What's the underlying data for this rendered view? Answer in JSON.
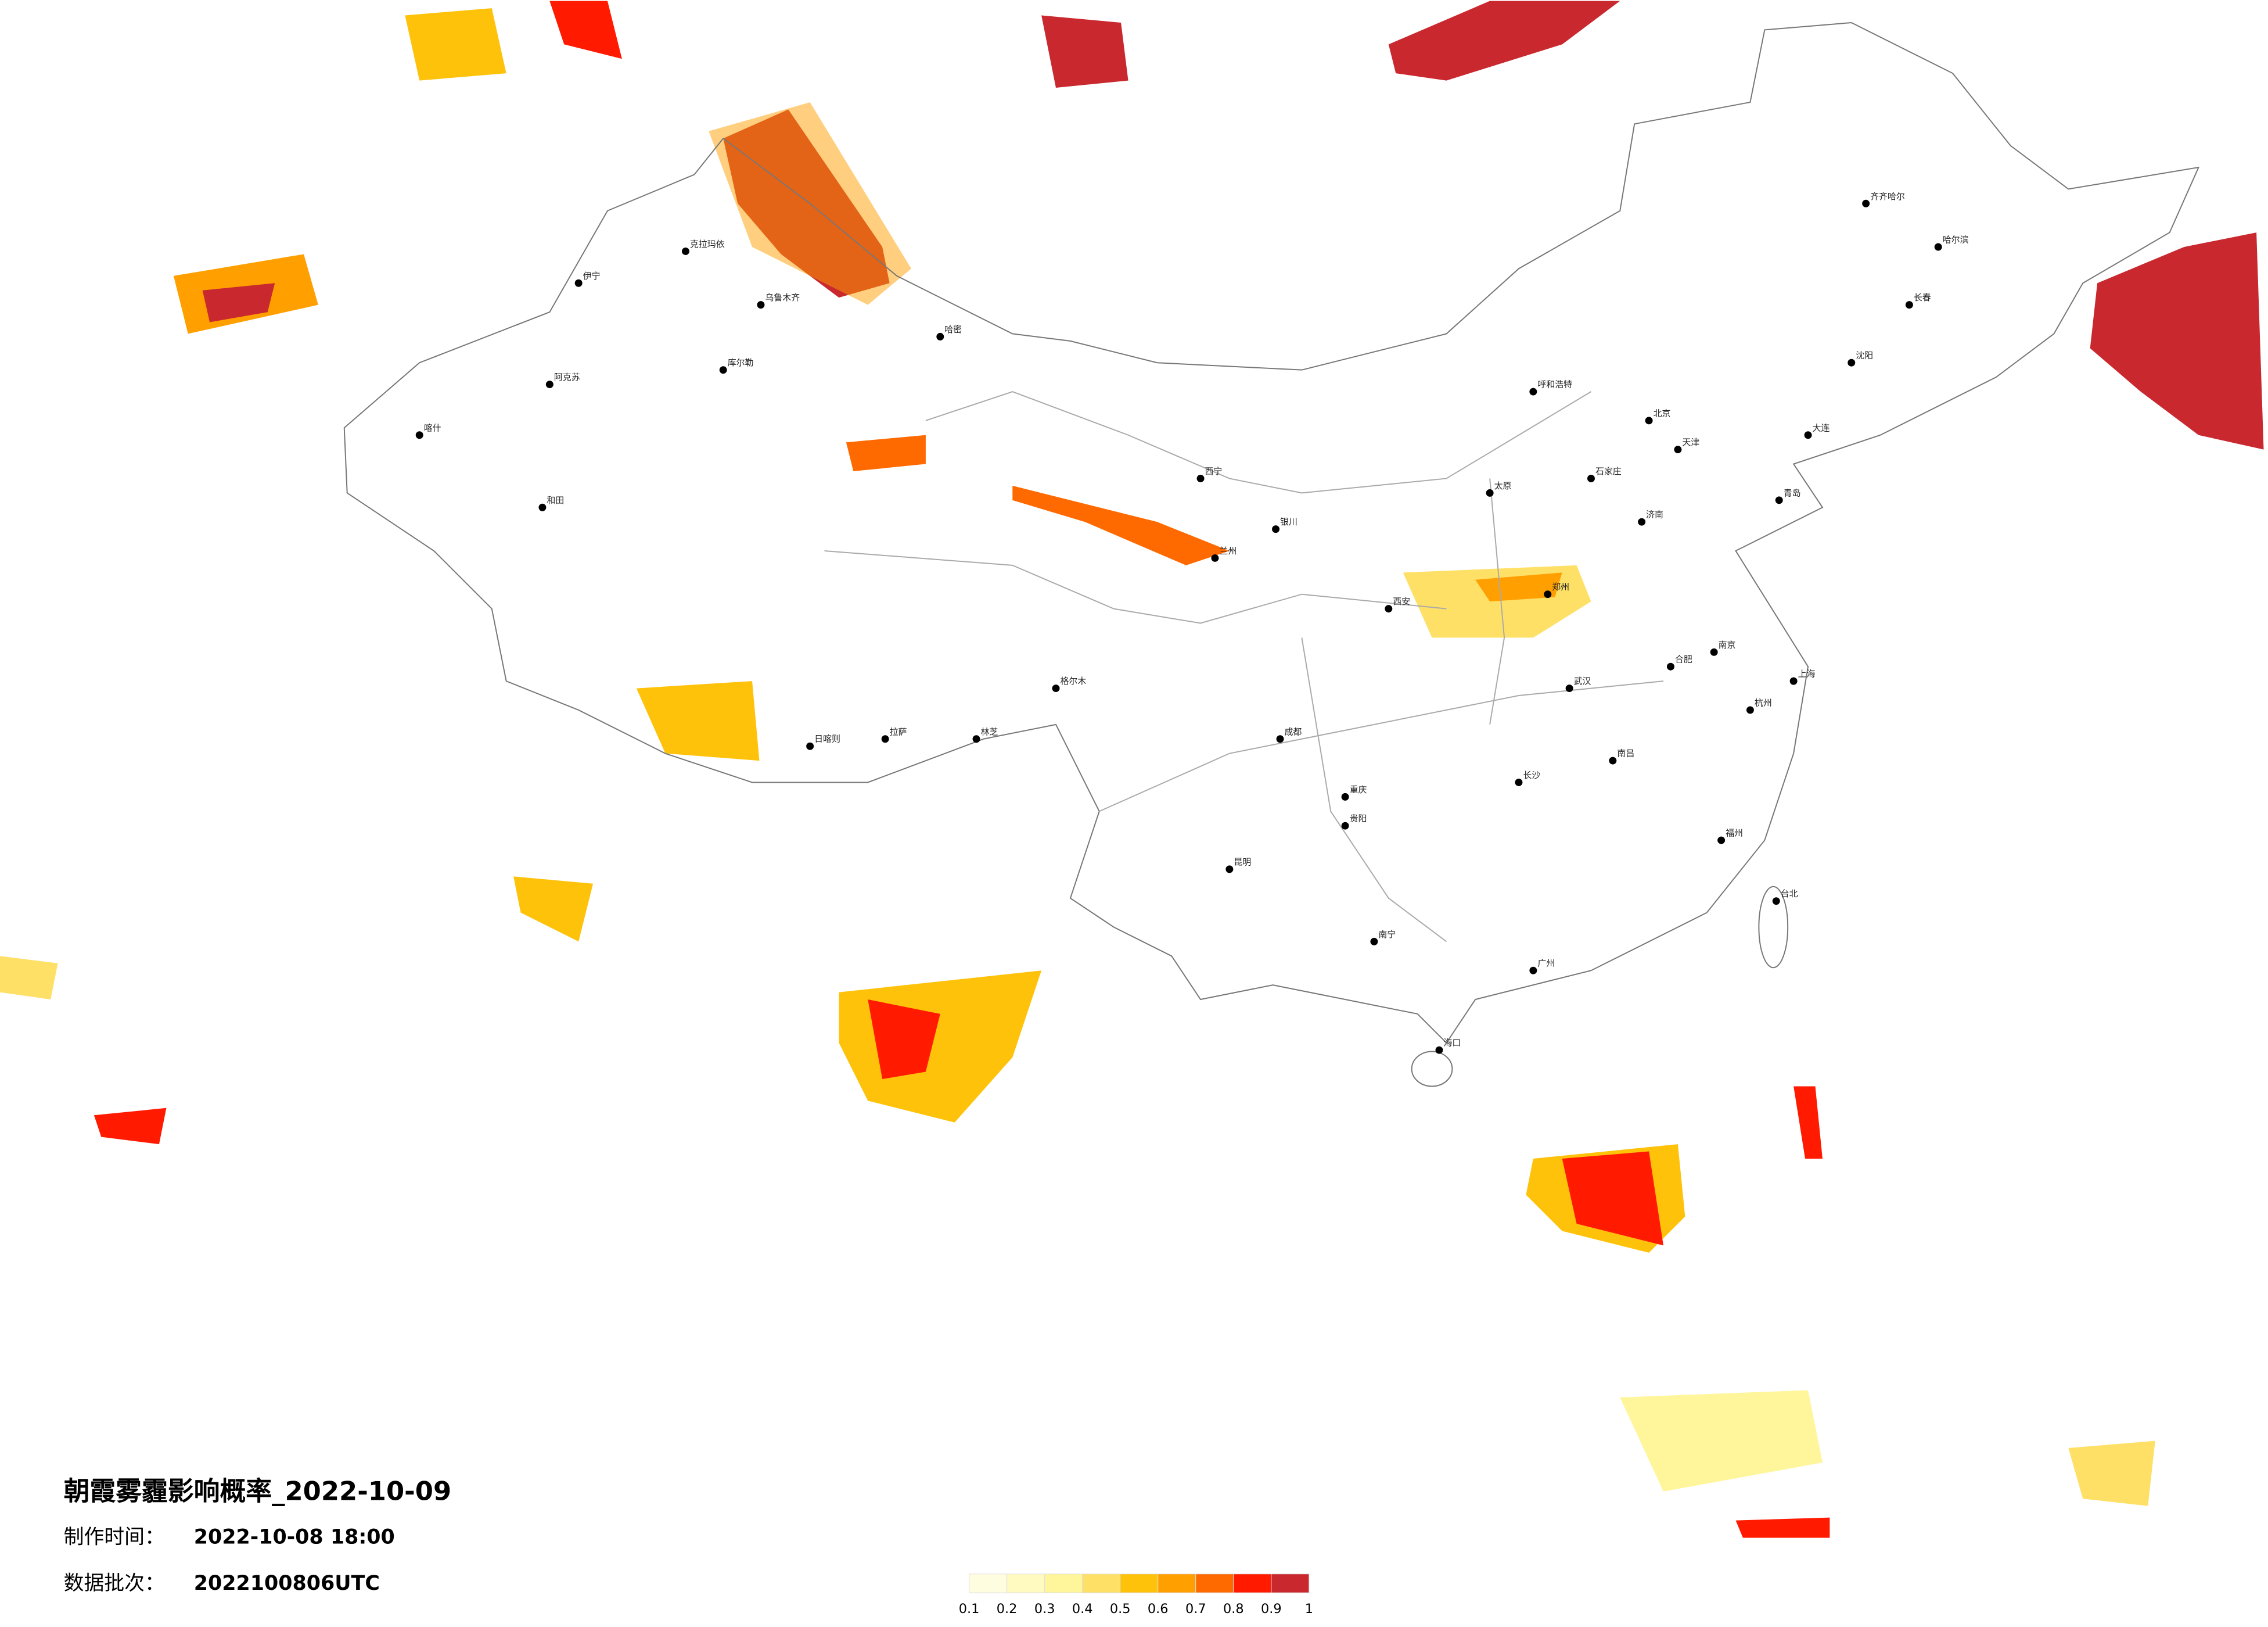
{
  "map": {
    "title": "朝霞雾霾影响概率_2022-10-09",
    "made_label": "制作时间：",
    "made_time": "2022-10-08 18:00",
    "batch_label": "数据批次：",
    "batch": "2022100806UTC"
  },
  "legend": {
    "ticks": [
      0.1,
      0.2,
      0.3,
      0.4,
      0.5,
      0.6,
      0.7,
      0.8,
      0.9,
      1
    ],
    "colors": [
      "#fffde0",
      "#fffac0",
      "#fff59a",
      "#ffe066",
      "#ffc20a",
      "#ff9f00",
      "#ff6a00",
      "#ff1a00",
      "#c8282e"
    ]
  },
  "cities": [
    "克拉玛依",
    "乌鲁木齐",
    "伊宁",
    "阿克苏",
    "喀什",
    "和田",
    "哈密",
    "库尔勒",
    "格尔木",
    "拉萨",
    "日喀则",
    "林芝",
    "西宁",
    "兰州",
    "银川",
    "呼和浩特",
    "北京",
    "天津",
    "石家庄",
    "太原",
    "济南",
    "郑州",
    "西安",
    "成都",
    "重庆",
    "贵阳",
    "昆明",
    "南宁",
    "广州",
    "长沙",
    "武汉",
    "南昌",
    "合肥",
    "南京",
    "上海",
    "杭州",
    "福州",
    "台北",
    "海口",
    "沈阳",
    "长春",
    "哈尔滨",
    "齐齐哈尔",
    "大连",
    "青岛"
  ]
}
